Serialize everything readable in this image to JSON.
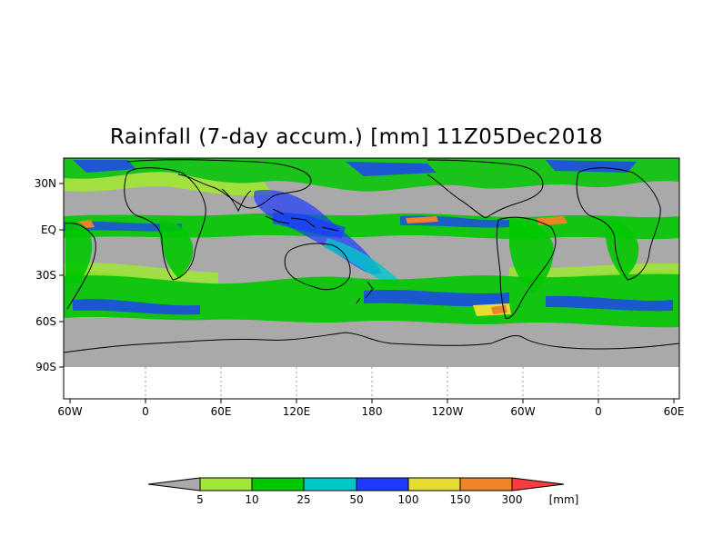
{
  "title": "Rainfall (7-day accum.) [mm] 11Z05Dec2018",
  "map": {
    "lon_labels": [
      "60W",
      "0",
      "60E",
      "120E",
      "180",
      "120W",
      "60W",
      "0",
      "60E"
    ],
    "lat_labels": [
      "30N",
      "EQ",
      "30S",
      "60S",
      "90S"
    ],
    "lon_range_label": "60W to 60E (wrapped, 480 degrees)",
    "no_data_color": "#a9a9a9",
    "background_color": "#ffffff"
  },
  "colorbar": {
    "levels": [
      "5",
      "10",
      "25",
      "50",
      "100",
      "150",
      "300"
    ],
    "unit": "[mm]",
    "colors": [
      "#a9a9a9",
      "#a0e632",
      "#00c800",
      "#00c8c8",
      "#1e3cff",
      "#e6dc32",
      "#f08228",
      "#fa3c3c"
    ]
  }
}
